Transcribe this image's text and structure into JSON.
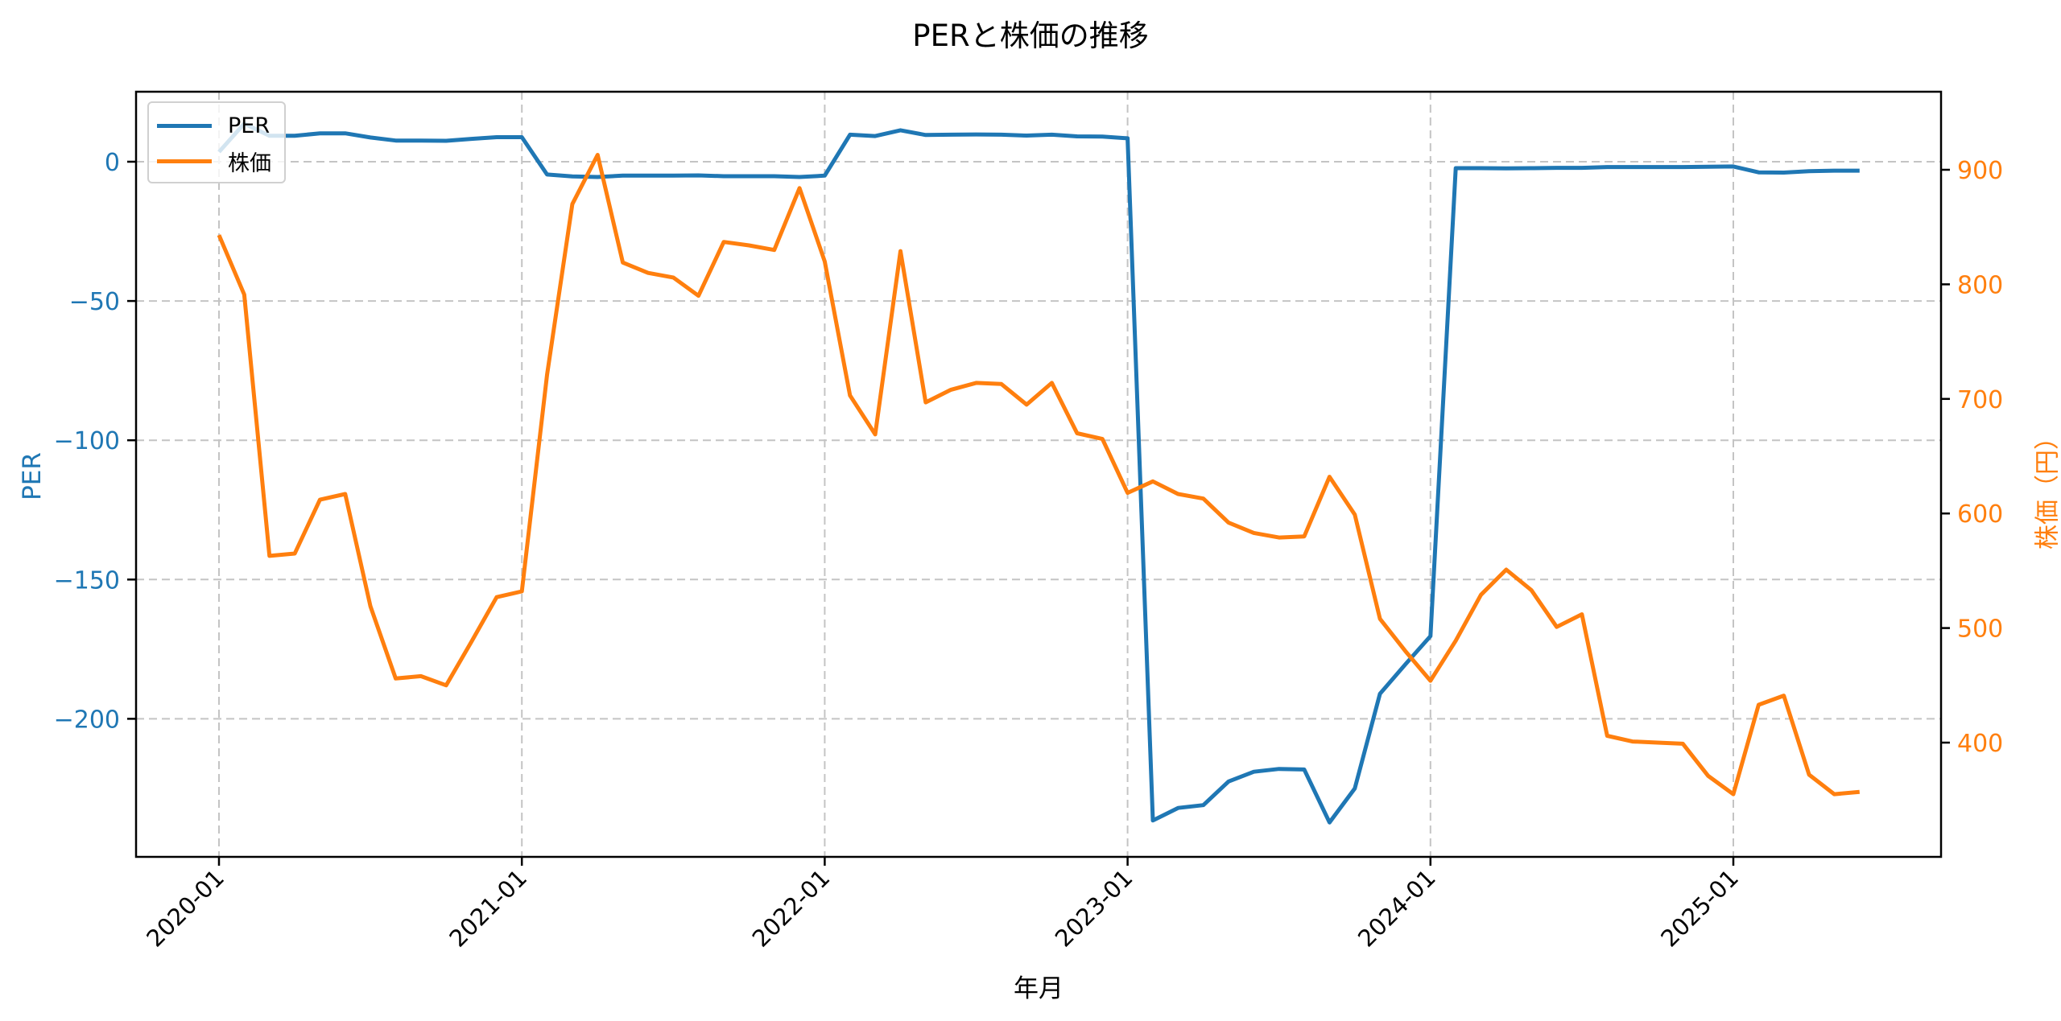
{
  "title": "PERと株価の推移",
  "legend": {
    "items": [
      {
        "label": "PER",
        "color": "#1f77b4"
      },
      {
        "label": "株価",
        "color": "#ff7f0e"
      }
    ]
  },
  "chart_data": {
    "type": "line",
    "title": "PERと株価の推移",
    "xlabel": "年月",
    "ylabel": "PER",
    "ylabel_right": "株価（円）",
    "grid": true,
    "legend_position": "upper left",
    "x_tick_labels": [
      "2020-01",
      "2021-01",
      "2022-01",
      "2023-01",
      "2024-01",
      "2025-01"
    ],
    "y_ticks_left": [
      0,
      -50,
      -100,
      -150,
      -200
    ],
    "y_ticks_right": [
      900,
      800,
      700,
      600,
      500,
      400
    ],
    "ylim_left": [
      -250,
      25
    ],
    "ylim_right": [
      300,
      965
    ],
    "x": [
      "2020-01",
      "2020-02",
      "2020-03",
      "2020-04",
      "2020-05",
      "2020-06",
      "2020-07",
      "2020-08",
      "2020-09",
      "2020-10",
      "2020-11",
      "2020-12",
      "2021-01",
      "2021-02",
      "2021-03",
      "2021-04",
      "2021-05",
      "2021-06",
      "2021-07",
      "2021-08",
      "2021-09",
      "2021-10",
      "2021-11",
      "2021-12",
      "2022-01",
      "2022-02",
      "2022-03",
      "2022-04",
      "2022-05",
      "2022-06",
      "2022-07",
      "2022-08",
      "2022-09",
      "2022-10",
      "2022-11",
      "2022-12",
      "2023-01",
      "2023-02",
      "2023-03",
      "2023-04",
      "2023-05",
      "2023-06",
      "2023-07",
      "2023-08",
      "2023-09",
      "2023-10",
      "2023-11",
      "2023-12",
      "2024-01",
      "2024-02",
      "2024-03",
      "2024-04",
      "2024-05",
      "2024-06",
      "2024-07",
      "2024-08",
      "2024-09",
      "2024-10",
      "2024-11",
      "2024-12",
      "2025-01",
      "2025-02",
      "2025-03",
      "2025-04",
      "2025-05",
      "2025-06"
    ],
    "series": [
      {
        "name": "PER",
        "axis": "left",
        "color": "#1f77b4",
        "values": [
          3.5,
          13.7,
          9.3,
          9.3,
          10.2,
          10.2,
          8.7,
          7.6,
          7.6,
          7.5,
          8.2,
          8.8,
          8.8,
          -4.6,
          -5.3,
          -5.5,
          -5.0,
          -5.0,
          -5.0,
          -4.9,
          -5.2,
          -5.2,
          -5.2,
          -5.5,
          -5.0,
          9.7,
          9.2,
          11.3,
          9.6,
          9.7,
          9.8,
          9.7,
          9.4,
          9.7,
          9.1,
          9.0,
          8.4,
          -236.5,
          -232.0,
          -231.0,
          -222.5,
          -219.0,
          -218.0,
          -218.2,
          -237.2,
          -225.0,
          -191.0,
          -180.5,
          -170.3,
          -2.3,
          -2.3,
          -2.4,
          -2.3,
          -2.2,
          -2.2,
          -1.9,
          -1.9,
          -1.9,
          -1.9,
          -1.8,
          -1.7,
          -3.8,
          -3.9,
          -3.4,
          -3.2,
          -3.2
        ]
      },
      {
        "name": "株価",
        "axis": "right",
        "color": "#ff7f0e",
        "values": [
          843,
          791,
          563,
          565,
          612,
          617,
          519,
          456,
          458,
          450,
          488,
          527,
          532,
          721,
          870,
          913,
          819,
          810,
          806,
          790,
          837,
          834,
          830,
          884,
          820,
          703,
          669,
          829,
          697,
          708,
          714,
          713,
          695,
          714,
          670,
          665,
          618,
          628,
          617,
          613,
          592,
          583,
          579,
          580,
          632,
          599,
          508,
          480,
          454,
          489,
          529,
          551,
          533,
          501,
          512,
          406,
          401,
          400,
          399,
          371,
          355,
          433,
          441,
          372,
          355,
          357
        ]
      }
    ]
  }
}
